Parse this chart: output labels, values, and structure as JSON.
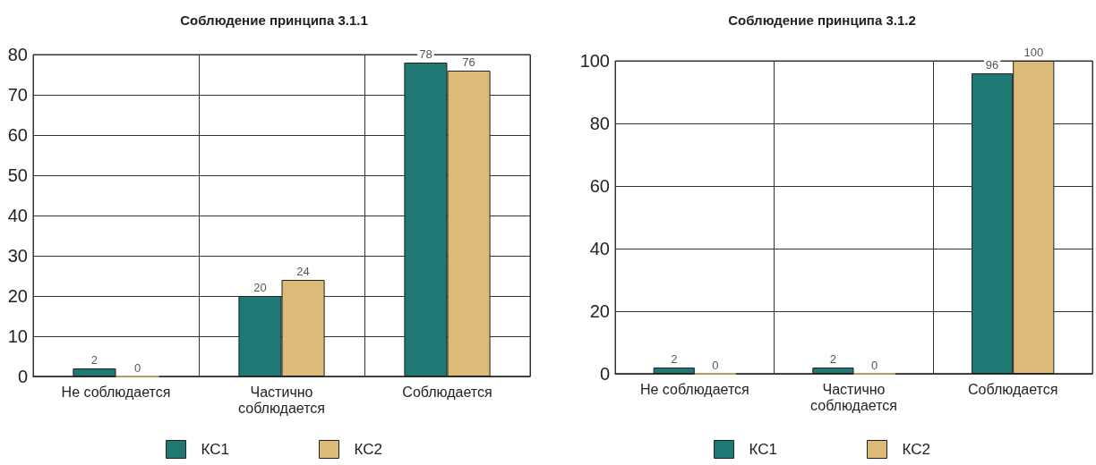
{
  "chart_data": [
    {
      "type": "bar",
      "title": "Соблюдение принципа 3.1.1",
      "categories": [
        "Не соблюдается",
        "Частично соблюдается",
        "Соблюдается"
      ],
      "series": [
        {
          "name": "КС1",
          "color": "#1f7874",
          "values": [
            2,
            20,
            78
          ]
        },
        {
          "name": "КС2",
          "color": "#dcbb78",
          "values": [
            0,
            24,
            76
          ]
        }
      ],
      "ylim": [
        0,
        80
      ],
      "yticks": [
        0,
        10,
        20,
        30,
        40,
        50,
        60,
        70,
        80
      ],
      "grid": true,
      "legend": "bottom",
      "data_labels": true
    },
    {
      "type": "bar",
      "title": "Соблюдение принципа 3.1.2",
      "categories": [
        "Не соблюдается",
        "Частично соблюдается",
        "Соблюдается"
      ],
      "series": [
        {
          "name": "КС1",
          "color": "#1f7874",
          "values": [
            2,
            2,
            96
          ]
        },
        {
          "name": "КС2",
          "color": "#dcbb78",
          "values": [
            0,
            0,
            100
          ]
        }
      ],
      "ylim": [
        0,
        100
      ],
      "yticks": [
        0,
        20,
        40,
        60,
        80,
        100
      ],
      "grid": true,
      "legend": "bottom",
      "data_labels": true
    }
  ]
}
